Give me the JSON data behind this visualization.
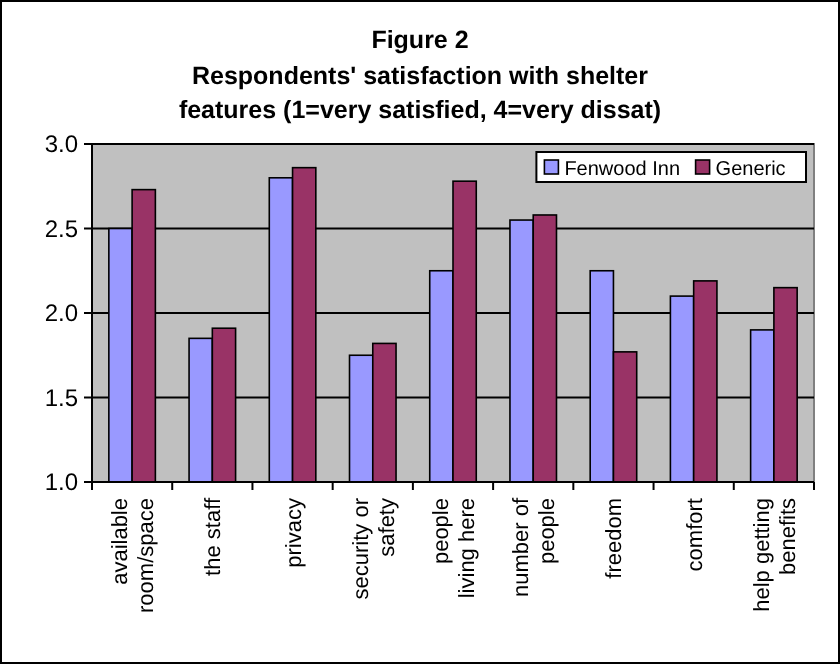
{
  "chart_data": {
    "type": "bar",
    "title": "Figure 2",
    "subtitle": "Respondents' satisfaction with shelter features (1=very satisfied, 4=very dissat)",
    "categories": [
      "available room/space",
      "the staff",
      "privacy",
      "security or safety",
      "people living here",
      "number of people",
      "freedom",
      "comfort",
      "help getting benefits"
    ],
    "series": [
      {
        "name": "Fenwood Inn",
        "color": "#9999ff",
        "values": [
          2.5,
          1.85,
          2.8,
          1.75,
          2.25,
          2.55,
          2.25,
          2.1,
          1.9
        ]
      },
      {
        "name": "Generic",
        "color": "#993366",
        "values": [
          2.73,
          1.91,
          2.86,
          1.82,
          2.78,
          2.58,
          1.77,
          2.19,
          2.15
        ]
      }
    ],
    "ylim": [
      1.0,
      3.0
    ],
    "yticks": [
      {
        "value": 1,
        "label": "1.0"
      },
      {
        "value": 1.5,
        "label": "1.5"
      },
      {
        "value": 2,
        "label": "2.0"
      },
      {
        "value": 2.5,
        "label": "2.5"
      },
      {
        "value": 3,
        "label": "3.0"
      }
    ],
    "grid": "y",
    "legend": "top right"
  }
}
